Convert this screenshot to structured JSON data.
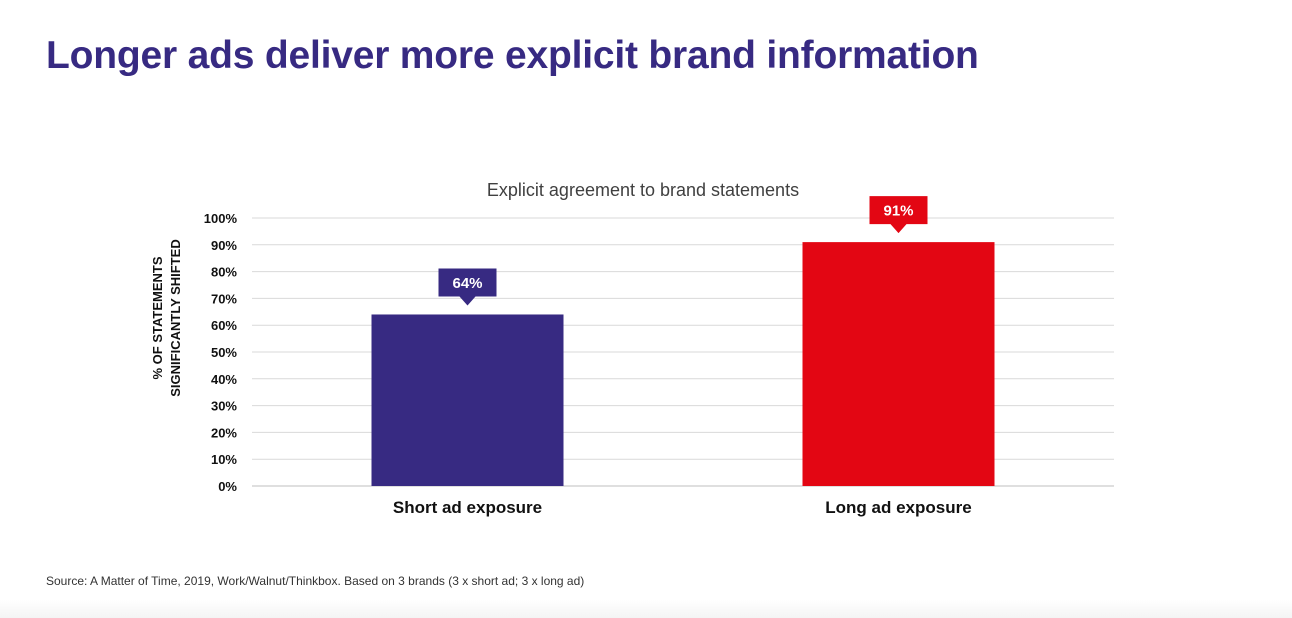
{
  "slide": {
    "title": "Longer ads deliver more explicit brand information",
    "source": "Source: A Matter of Time, 2019, Work/Walnut/Thinkbox. Based on 3 brands (3 x short ad; 3 x long ad)"
  },
  "chart_data": {
    "type": "bar",
    "title": "Explicit agreement to brand statements",
    "categories": [
      "Short ad exposure",
      "Long ad exposure"
    ],
    "values": [
      64,
      91
    ],
    "data_labels": [
      "64%",
      "91%"
    ],
    "colors": [
      "#372a82",
      "#e30613"
    ],
    "ylabel_lines": [
      "% OF STATEMENTS",
      "SIGNIFICANTLY SHIFTED"
    ],
    "ylim": [
      0,
      100
    ],
    "yticks": [
      0,
      10,
      20,
      30,
      40,
      50,
      60,
      70,
      80,
      90,
      100
    ],
    "ytick_labels": [
      "0%",
      "10%",
      "20%",
      "30%",
      "40%",
      "50%",
      "60%",
      "70%",
      "80%",
      "90%",
      "100%"
    ],
    "xlabel": "",
    "grid": true,
    "legend": "none"
  }
}
